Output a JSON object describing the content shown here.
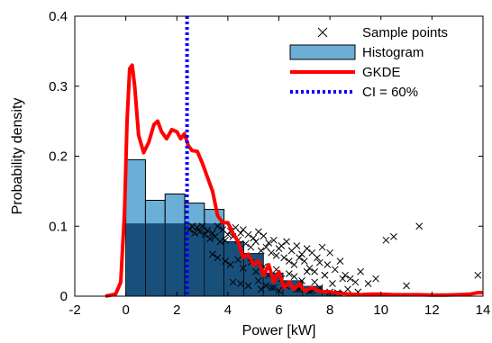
{
  "chart_data": {
    "type": "bar",
    "xlabel": "Power [kW]",
    "ylabel": "Probability density",
    "xlim": [
      -2,
      14
    ],
    "ylim": [
      0,
      0.4
    ],
    "xticks": [
      "-2",
      "0",
      "2",
      "4",
      "6",
      "8",
      "10",
      "12",
      "14"
    ],
    "yticks": [
      "0",
      "0.1",
      "0.2",
      "0.3",
      "0.4"
    ],
    "grid": false,
    "legend_position": "top-right",
    "legend": {
      "sample_points": "Sample points",
      "histogram": "Histogram",
      "gkde": "GKDE",
      "ci": "CI = 60%"
    },
    "colors": {
      "histogram_fill": "#6baed6",
      "histogram_edge": "#000000",
      "histogram_dense": "#08406b",
      "gkde": "#ff0000",
      "ci": "#0000ff",
      "sample_points": "#000000"
    },
    "histogram": {
      "bin_width": 0.77,
      "bins": [
        {
          "x0": 0.0,
          "value": 0.195
        },
        {
          "x0": 0.77,
          "value": 0.137
        },
        {
          "x0": 1.54,
          "value": 0.146
        },
        {
          "x0": 2.31,
          "value": 0.133
        },
        {
          "x0": 3.08,
          "value": 0.124
        },
        {
          "x0": 3.85,
          "value": 0.078
        },
        {
          "x0": 4.62,
          "value": 0.061
        },
        {
          "x0": 5.39,
          "value": 0.033
        },
        {
          "x0": 6.16,
          "value": 0.022
        },
        {
          "x0": 6.93,
          "value": 0.014
        },
        {
          "x0": 7.7,
          "value": 0.007
        }
      ],
      "dense_top": 0.104
    },
    "gkde": {
      "x": [
        -0.8,
        -0.4,
        -0.2,
        -0.05,
        0.05,
        0.15,
        0.25,
        0.35,
        0.5,
        0.7,
        0.9,
        1.1,
        1.25,
        1.4,
        1.6,
        1.8,
        2.0,
        2.15,
        2.3,
        2.45,
        2.6,
        2.8,
        3.0,
        3.2,
        3.4,
        3.6,
        3.8,
        4.0,
        4.2,
        4.4,
        4.6,
        4.8,
        5.0,
        5.2,
        5.4,
        5.6,
        5.8,
        6.0,
        6.2,
        6.4,
        6.6,
        6.8,
        7.0,
        7.3,
        7.6,
        8.0,
        8.4,
        8.8,
        9.2,
        9.6,
        10.0,
        10.5,
        11.0,
        11.5,
        12.0,
        12.5,
        13.0,
        13.5,
        13.8,
        14.0
      ],
      "y": [
        0.0,
        0.003,
        0.02,
        0.12,
        0.25,
        0.325,
        0.33,
        0.3,
        0.23,
        0.205,
        0.22,
        0.245,
        0.25,
        0.235,
        0.225,
        0.238,
        0.235,
        0.225,
        0.232,
        0.215,
        0.208,
        0.207,
        0.19,
        0.17,
        0.15,
        0.115,
        0.105,
        0.105,
        0.09,
        0.078,
        0.055,
        0.06,
        0.045,
        0.05,
        0.03,
        0.045,
        0.02,
        0.035,
        0.012,
        0.02,
        0.01,
        0.018,
        0.008,
        0.012,
        0.007,
        0.006,
        0.004,
        0.003,
        0.002,
        0.003,
        0.003,
        0.002,
        0.002,
        0.002,
        0.0015,
        0.0015,
        0.002,
        0.003,
        0.005,
        0.005
      ]
    },
    "ci_x": 2.4,
    "sample_points": {
      "x": [
        2.5,
        2.6,
        2.7,
        2.8,
        2.9,
        3.0,
        3.1,
        3.2,
        3.3,
        3.4,
        3.5,
        3.6,
        3.7,
        3.8,
        3.9,
        4.0,
        4.1,
        4.2,
        4.3,
        4.4,
        4.5,
        4.6,
        4.7,
        4.8,
        4.9,
        5.0,
        5.1,
        5.2,
        5.3,
        5.4,
        5.5,
        5.6,
        5.7,
        5.8,
        5.9,
        6.0,
        6.1,
        6.2,
        6.3,
        6.4,
        6.5,
        6.6,
        6.7,
        6.8,
        6.9,
        7.0,
        7.1,
        7.2,
        7.3,
        7.4,
        7.5,
        7.6,
        7.7,
        7.8,
        7.9,
        8.0,
        8.2,
        8.4,
        8.6,
        8.8,
        9.0,
        9.2,
        9.5,
        9.8,
        10.2,
        10.5,
        11.0,
        11.5,
        13.8,
        3.4,
        3.6,
        3.9,
        4.1,
        4.4,
        4.6,
        4.9,
        5.1,
        5.4,
        5.6,
        5.9,
        6.1,
        6.4,
        6.6,
        6.9,
        7.1,
        7.4,
        7.8,
        8.1,
        8.5,
        5.3,
        5.5,
        5.7,
        6.0,
        6.3,
        6.8,
        7.2,
        7.6,
        8.3,
        8.7,
        9.1,
        4.2,
        4.5,
        4.8,
        5.2,
        5.8,
        6.2,
        6.7,
        7.3,
        8.0
      ],
      "y": [
        0.095,
        0.1,
        0.09,
        0.098,
        0.092,
        0.1,
        0.088,
        0.094,
        0.082,
        0.09,
        0.085,
        0.1,
        0.078,
        0.095,
        0.08,
        0.088,
        0.093,
        0.085,
        0.098,
        0.08,
        0.09,
        0.095,
        0.075,
        0.088,
        0.07,
        0.083,
        0.078,
        0.092,
        0.065,
        0.086,
        0.07,
        0.076,
        0.062,
        0.08,
        0.058,
        0.068,
        0.072,
        0.055,
        0.078,
        0.05,
        0.065,
        0.045,
        0.072,
        0.055,
        0.06,
        0.05,
        0.068,
        0.04,
        0.062,
        0.035,
        0.055,
        0.048,
        0.07,
        0.03,
        0.045,
        0.062,
        0.038,
        0.05,
        0.03,
        0.025,
        0.02,
        0.035,
        0.018,
        0.025,
        0.08,
        0.085,
        0.015,
        0.1,
        0.03,
        0.06,
        0.055,
        0.05,
        0.045,
        0.052,
        0.04,
        0.048,
        0.035,
        0.042,
        0.03,
        0.038,
        0.025,
        0.032,
        0.028,
        0.022,
        0.035,
        0.02,
        0.03,
        0.018,
        0.025,
        0.01,
        0.015,
        0.012,
        0.008,
        0.014,
        0.01,
        0.007,
        0.012,
        0.005,
        0.01,
        0.006,
        0.02,
        0.018,
        0.015,
        0.022,
        0.012,
        0.016,
        0.01,
        0.008,
        0.006
      ]
    }
  }
}
